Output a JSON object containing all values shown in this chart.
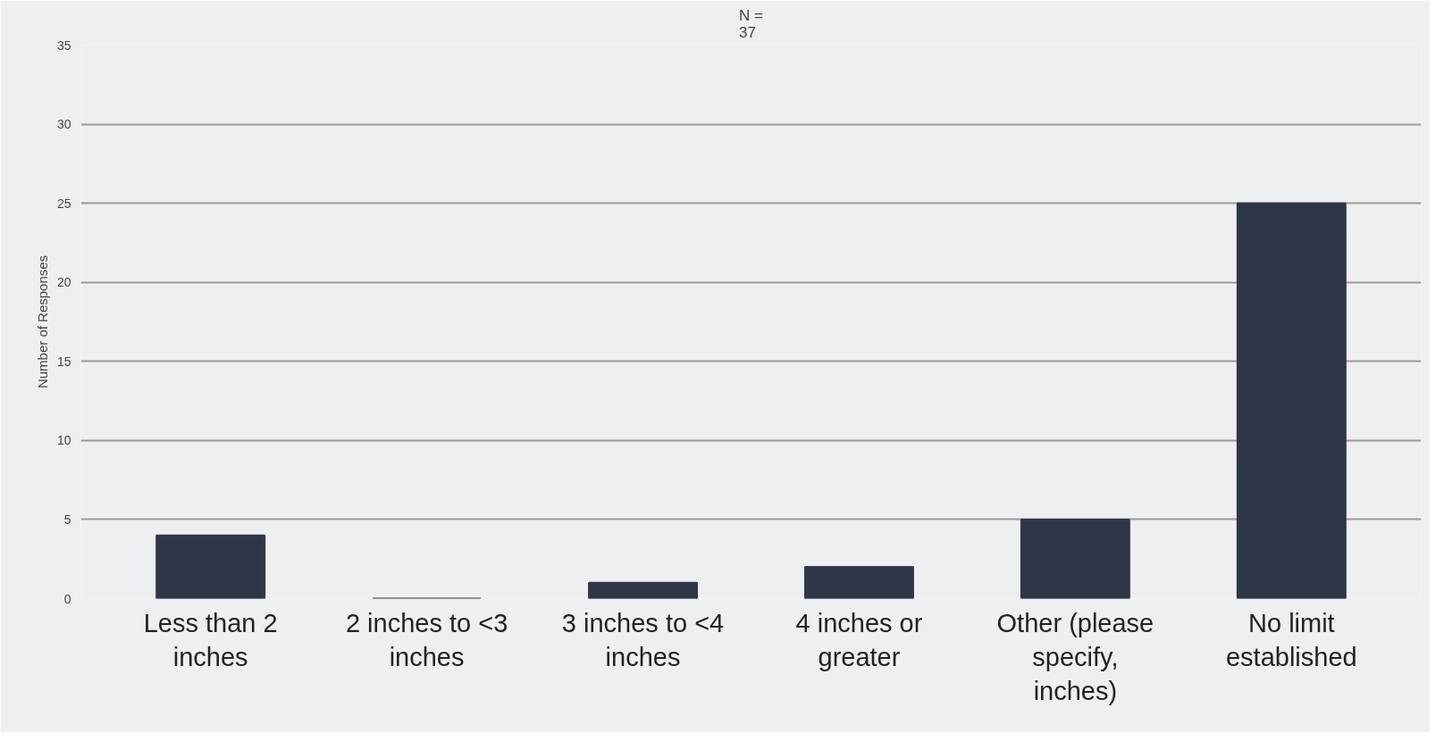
{
  "chart_data": {
    "type": "bar",
    "title": "N = 37",
    "ylabel": "Number of Responses",
    "categories": [
      "Less than 2 inches",
      "2 inches to <3 inches",
      "3 inches to <4 inches",
      "4 inches or greater",
      "Other (please specify, inches)",
      "No limit established"
    ],
    "values": [
      4,
      0,
      1,
      2,
      5,
      25
    ],
    "color": "#2e3748",
    "ylim": [
      0,
      35
    ],
    "yticks": [
      0,
      5,
      10,
      15,
      20,
      25,
      30,
      35
    ],
    "grid": "y"
  }
}
